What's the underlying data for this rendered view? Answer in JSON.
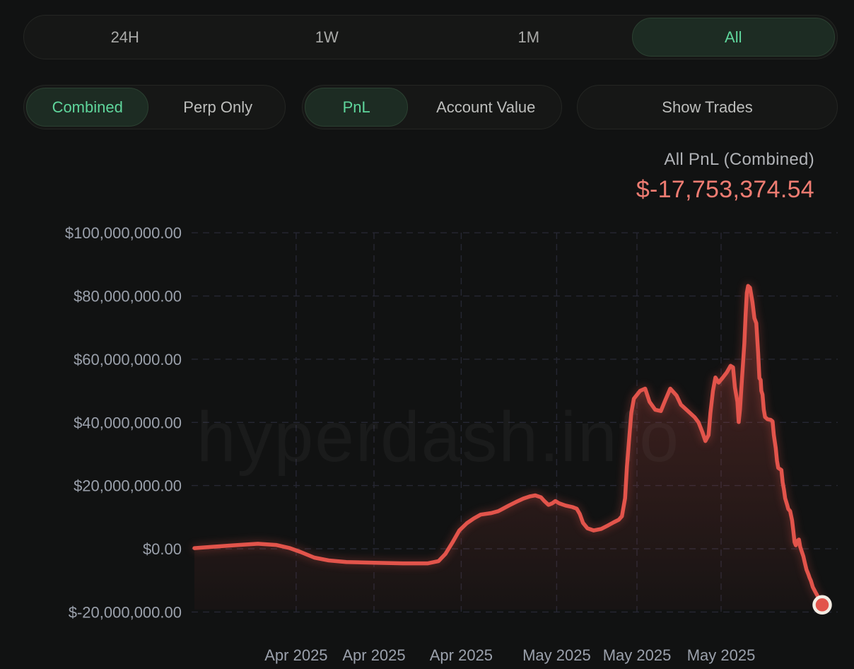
{
  "colors": {
    "background": "#111212",
    "panel": "#161716",
    "panel_border": "#242623",
    "pill_active_bg": "#1d2c23",
    "pill_active_border": "#2b4031",
    "pill_active_text": "#5fd69c",
    "text_row1": "#a9aaa8",
    "text_row2": "#bdbebc",
    "title_text": "#b0b2b6",
    "value_red": "#ef7c72",
    "line_red": "#e2544b",
    "grid": "#262733",
    "axis_text": "#9aa0ab",
    "dot_ring": "#f2ece3",
    "watermark": "rgba(235,235,235,0.045)"
  },
  "time_range_tabs": {
    "items": [
      {
        "label": "24H",
        "active": false
      },
      {
        "label": "1W",
        "active": false
      },
      {
        "label": "1M",
        "active": false
      },
      {
        "label": "All",
        "active": true
      }
    ]
  },
  "filters": {
    "mode_toggle": {
      "options": [
        {
          "label": "Combined",
          "active": true
        },
        {
          "label": "Perp Only",
          "active": false
        }
      ]
    },
    "metric_toggle": {
      "options": [
        {
          "label": "PnL",
          "active": true
        },
        {
          "label": "Account Value",
          "active": false
        }
      ]
    },
    "show_trades_label": "Show Trades"
  },
  "chart_header": {
    "title": "All PnL (Combined)",
    "value": "$-17,753,374.54"
  },
  "watermark": "hyperdash.info",
  "chart_data": {
    "type": "area",
    "title": "All PnL (Combined)",
    "series_name": "All PnL (Combined)",
    "current_value": "$-17,753,374.54",
    "current_value_usd": -17753374.54,
    "unit": "USD millions",
    "ylim_millions": [
      -20,
      100
    ],
    "grid": "dashed",
    "y_ticks": [
      {
        "label": "$100,000,000.00",
        "millions": 100
      },
      {
        "label": "$80,000,000.00",
        "millions": 80
      },
      {
        "label": "$60,000,000.00",
        "millions": 60
      },
      {
        "label": "$40,000,000.00",
        "millions": 40
      },
      {
        "label": "$20,000,000.00",
        "millions": 20
      },
      {
        "label": "$0.00",
        "millions": 0
      },
      {
        "label": "$-20,000,000.00",
        "millions": -20
      }
    ],
    "x_ticks": [
      {
        "label": "Apr 2025",
        "pos": 0.162
      },
      {
        "label": "Apr 2025",
        "pos": 0.286
      },
      {
        "label": "Apr 2025",
        "pos": 0.425
      },
      {
        "label": "May 2025",
        "pos": 0.577
      },
      {
        "label": "May 2025",
        "pos": 0.705
      },
      {
        "label": "May 2025",
        "pos": 0.839
      }
    ],
    "points": [
      [
        0,
        0.2
      ],
      [
        0.028,
        0.6
      ],
      [
        0.062,
        1.1
      ],
      [
        0.101,
        1.6
      ],
      [
        0.13,
        1.2
      ],
      [
        0.152,
        0.2
      ],
      [
        0.169,
        -1
      ],
      [
        0.191,
        -2.8
      ],
      [
        0.214,
        -3.7
      ],
      [
        0.242,
        -4.2
      ],
      [
        0.287,
        -4.4
      ],
      [
        0.332,
        -4.6
      ],
      [
        0.372,
        -4.6
      ],
      [
        0.389,
        -3.9
      ],
      [
        0.4,
        -1.6
      ],
      [
        0.411,
        2
      ],
      [
        0.422,
        5.8
      ],
      [
        0.434,
        8.1
      ],
      [
        0.445,
        9.6
      ],
      [
        0.456,
        10.8
      ],
      [
        0.473,
        11.3
      ],
      [
        0.484,
        11.9
      ],
      [
        0.49,
        12.5
      ],
      [
        0.501,
        13.7
      ],
      [
        0.512,
        14.8
      ],
      [
        0.524,
        15.9
      ],
      [
        0.535,
        16.6
      ],
      [
        0.543,
        16.9
      ],
      [
        0.552,
        16.3
      ],
      [
        0.557,
        15.2
      ],
      [
        0.564,
        13.9
      ],
      [
        0.57,
        14.4
      ],
      [
        0.575,
        15.1
      ],
      [
        0.581,
        14.4
      ],
      [
        0.591,
        13.7
      ],
      [
        0.602,
        13.2
      ],
      [
        0.609,
        12.7
      ],
      [
        0.614,
        11
      ],
      [
        0.619,
        8.2
      ],
      [
        0.626,
        6.5
      ],
      [
        0.636,
        5.8
      ],
      [
        0.648,
        6.3
      ],
      [
        0.659,
        7.4
      ],
      [
        0.668,
        8.4
      ],
      [
        0.676,
        9.2
      ],
      [
        0.681,
        10.3
      ],
      [
        0.686,
        16
      ],
      [
        0.689,
        26
      ],
      [
        0.693,
        36
      ],
      [
        0.696,
        43
      ],
      [
        0.7,
        47.5
      ],
      [
        0.71,
        50
      ],
      [
        0.718,
        50.7
      ],
      [
        0.725,
        46.5
      ],
      [
        0.734,
        44
      ],
      [
        0.743,
        43.6
      ],
      [
        0.75,
        47
      ],
      [
        0.758,
        50.7
      ],
      [
        0.768,
        48.5
      ],
      [
        0.775,
        45.6
      ],
      [
        0.786,
        43.6
      ],
      [
        0.797,
        41.6
      ],
      [
        0.803,
        40
      ],
      [
        0.809,
        37
      ],
      [
        0.814,
        34.1
      ],
      [
        0.819,
        36
      ],
      [
        0.822,
        43
      ],
      [
        0.826,
        50
      ],
      [
        0.83,
        54.2
      ],
      [
        0.835,
        52.6
      ],
      [
        0.841,
        54
      ],
      [
        0.848,
        55.8
      ],
      [
        0.854,
        57.9
      ],
      [
        0.858,
        57.4
      ],
      [
        0.861,
        51
      ],
      [
        0.865,
        46.5
      ],
      [
        0.867,
        40.1
      ],
      [
        0.869,
        44
      ],
      [
        0.872,
        53
      ],
      [
        0.876,
        65
      ],
      [
        0.878,
        74
      ],
      [
        0.88,
        81
      ],
      [
        0.882,
        83.2
      ],
      [
        0.885,
        82.6
      ],
      [
        0.889,
        78
      ],
      [
        0.892,
        73
      ],
      [
        0.895,
        71.4
      ],
      [
        0.898,
        62
      ],
      [
        0.9,
        54
      ],
      [
        0.902,
        53.4
      ],
      [
        0.903,
        50
      ],
      [
        0.905,
        48.8
      ],
      [
        0.907,
        44
      ],
      [
        0.909,
        41.7
      ],
      [
        0.913,
        41
      ],
      [
        0.918,
        40.8
      ],
      [
        0.921,
        40.3
      ],
      [
        0.923,
        36
      ],
      [
        0.926,
        31.9
      ],
      [
        0.928,
        27.8
      ],
      [
        0.93,
        25.6
      ],
      [
        0.935,
        24.9
      ],
      [
        0.937,
        21
      ],
      [
        0.939,
        18.9
      ],
      [
        0.941,
        16
      ],
      [
        0.944,
        14
      ],
      [
        0.946,
        12.6
      ],
      [
        0.949,
        11.9
      ],
      [
        0.952,
        9
      ],
      [
        0.954,
        5.6
      ],
      [
        0.956,
        2.1
      ],
      [
        0.958,
        1.1
      ],
      [
        0.961,
        2.6
      ],
      [
        0.963,
        2.9
      ],
      [
        0.965,
        0.6
      ],
      [
        0.967,
        -0.6
      ],
      [
        0.97,
        -2.4
      ],
      [
        0.972,
        -4.1
      ],
      [
        0.975,
        -6.6
      ],
      [
        0.978,
        -8.1
      ],
      [
        0.98,
        -9.2
      ],
      [
        0.982,
        -10.1
      ],
      [
        0.985,
        -12.1
      ],
      [
        0.989,
        -13.6
      ],
      [
        0.992,
        -14.7
      ],
      [
        0.996,
        -16.1
      ],
      [
        1,
        -17.753
      ]
    ],
    "end_dot": true,
    "legend": "none"
  }
}
